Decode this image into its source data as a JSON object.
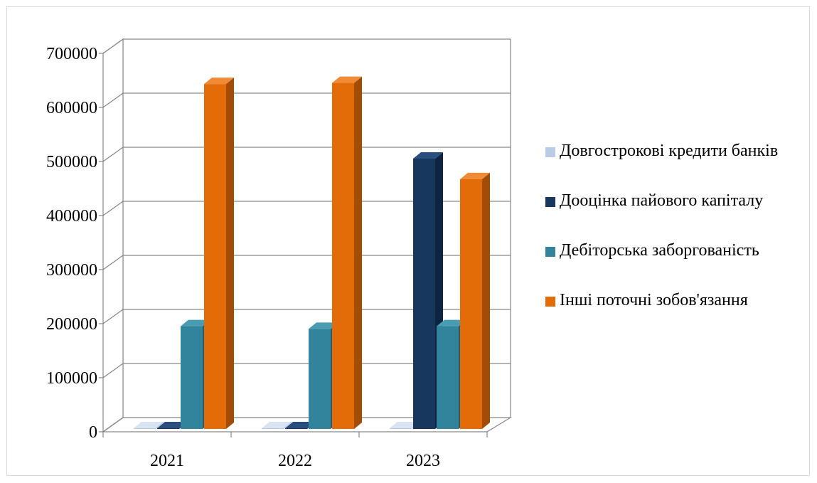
{
  "chart_data": {
    "type": "bar",
    "style": "3d-clustered-column",
    "categories": [
      "2021",
      "2022",
      "2023"
    ],
    "series": [
      {
        "name": "Довгострокові кредити банків",
        "values": [
          0,
          0,
          0
        ],
        "color": "#b8cce4",
        "side": "#8faac9",
        "top": "#d8e4f2"
      },
      {
        "name": "Дооцінка пайового капіталу",
        "values": [
          0,
          0,
          500000
        ],
        "color": "#17375e",
        "side": "#0f2440",
        "top": "#2a4e7e"
      },
      {
        "name": "Дебіторська заборгованість",
        "values": [
          190000,
          185000,
          190000
        ],
        "color": "#31849b",
        "side": "#215e70",
        "top": "#4a9cb3"
      },
      {
        "name": "Інші поточні зобов'язання",
        "values": [
          638000,
          640000,
          462000
        ],
        "color": "#e36c09",
        "side": "#a34c05",
        "top": "#f08a35"
      }
    ],
    "yticks": [
      "0",
      "100000",
      "200000",
      "300000",
      "400000",
      "500000",
      "600000",
      "700000"
    ],
    "ylim": [
      0,
      700000
    ],
    "grid": true,
    "legend_position": "right"
  }
}
